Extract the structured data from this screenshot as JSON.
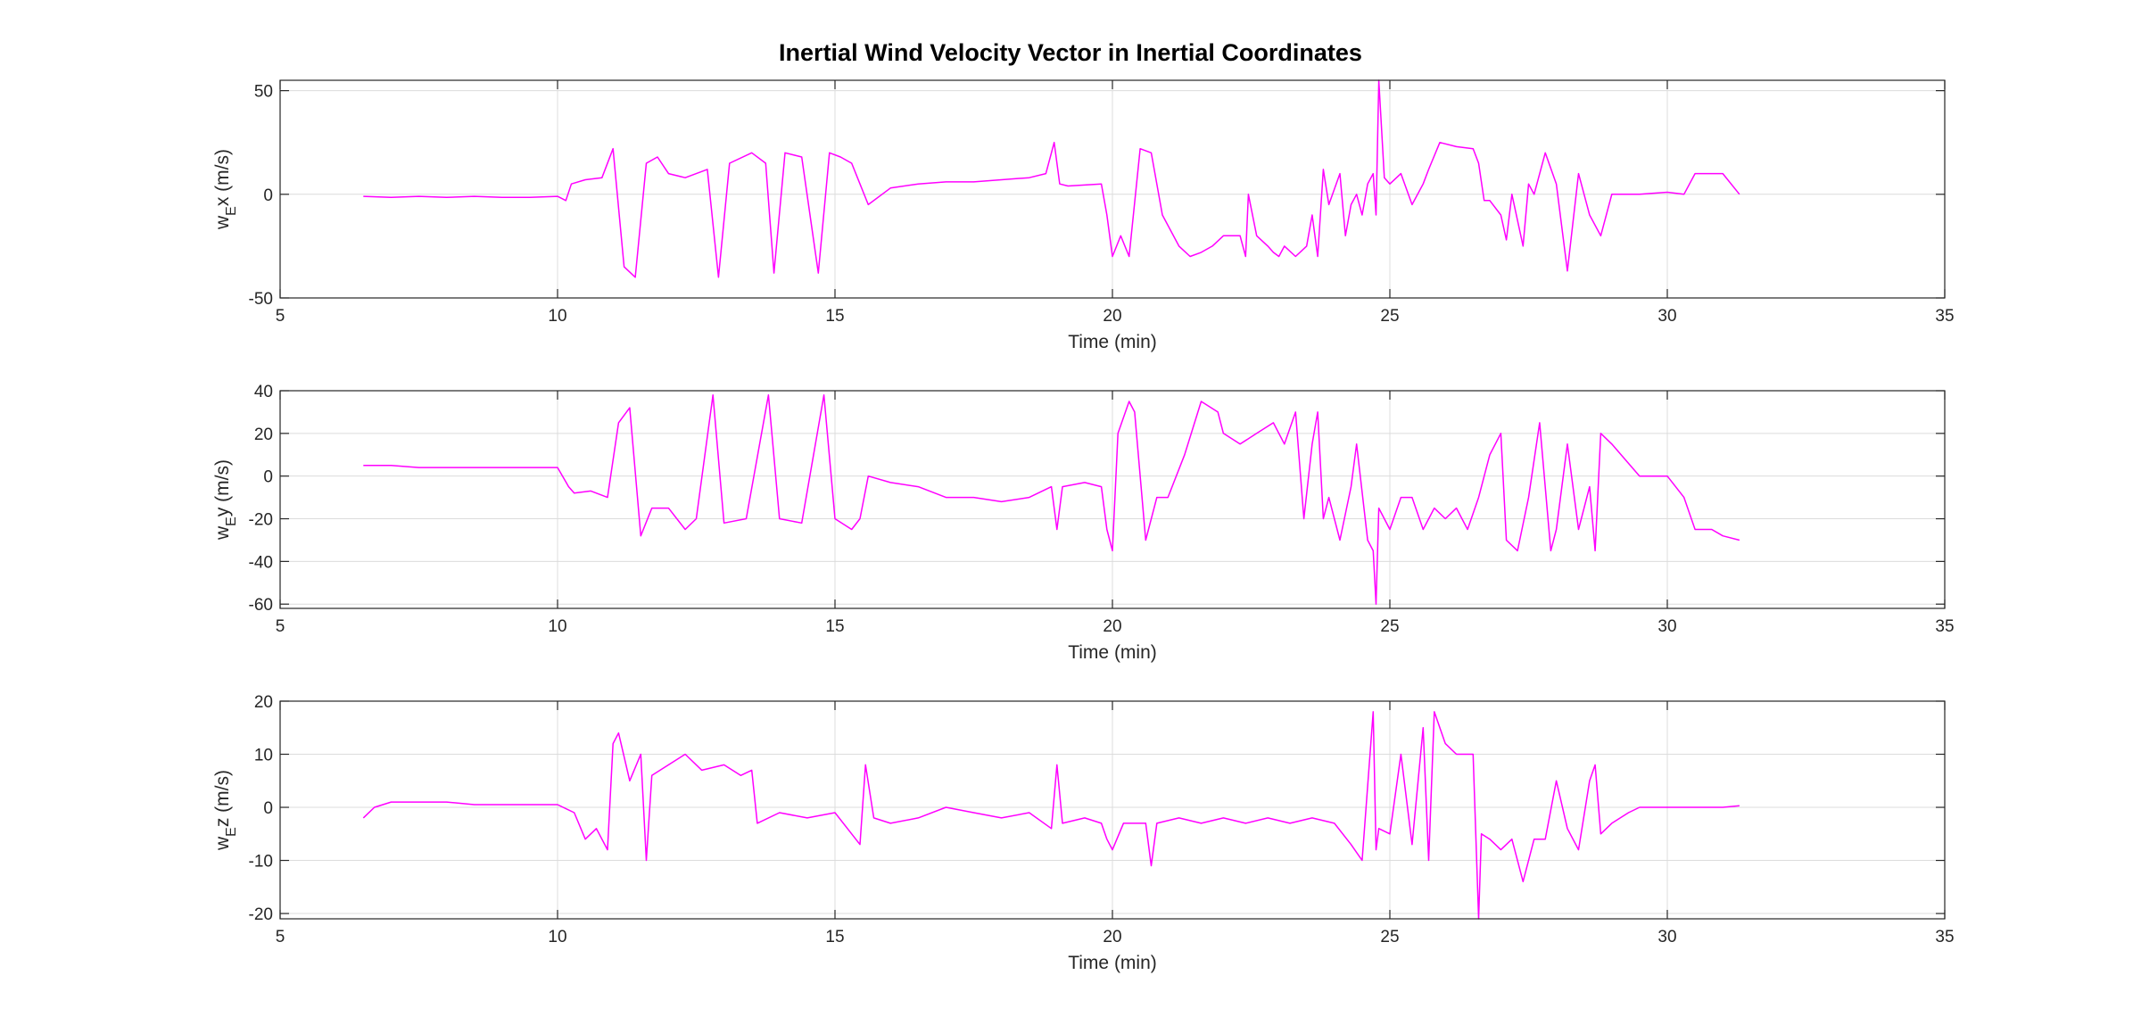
{
  "figure": {
    "title": "Inertial Wind Velocity Vector in Inertial Coordinates"
  },
  "colors": {
    "series": "#ff00ff",
    "axes": "#262626",
    "grid": "#dcdcdc",
    "background": "#ffffff"
  },
  "chart_data": [
    {
      "type": "line",
      "xlabel": "Time (min)",
      "ylabel_main": "w",
      "ylabel_sub": "E",
      "ylabel_rest": "x (m/s)",
      "xlim": [
        5,
        35
      ],
      "ylim": [
        -50,
        55
      ],
      "xticks": [
        5,
        10,
        15,
        20,
        25,
        30,
        35
      ],
      "yticks": [
        -50,
        0,
        50
      ],
      "grid": true,
      "x": [
        6.5,
        7.0,
        7.5,
        8.0,
        8.5,
        9.0,
        9.5,
        10.0,
        10.15,
        10.25,
        10.5,
        10.8,
        11.0,
        11.2,
        11.4,
        11.6,
        11.8,
        12.0,
        12.3,
        12.5,
        12.7,
        12.9,
        13.1,
        13.5,
        13.75,
        13.9,
        14.1,
        14.4,
        14.7,
        14.9,
        15.1,
        15.3,
        15.45,
        15.6,
        16.0,
        16.5,
        17.0,
        17.5,
        18.0,
        18.5,
        18.8,
        18.95,
        19.05,
        19.2,
        19.8,
        19.9,
        20.0,
        20.15,
        20.3,
        20.5,
        20.7,
        20.9,
        21.2,
        21.4,
        21.6,
        21.8,
        22.0,
        22.3,
        22.4,
        22.45,
        22.6,
        22.8,
        22.9,
        23.0,
        23.1,
        23.3,
        23.5,
        23.6,
        23.7,
        23.8,
        23.9,
        24.1,
        24.2,
        24.3,
        24.4,
        24.5,
        24.6,
        24.7,
        24.75,
        24.8,
        24.9,
        25.0,
        25.2,
        25.4,
        25.6,
        25.7,
        25.9,
        26.2,
        26.5,
        26.6,
        26.7,
        26.8,
        27.0,
        27.1,
        27.2,
        27.4,
        27.5,
        27.6,
        27.8,
        28.0,
        28.2,
        28.4,
        28.6,
        28.8,
        29.0,
        29.5,
        30.0,
        30.3,
        30.5,
        31.0,
        31.3
      ],
      "y": [
        -1,
        -1.5,
        -1,
        -1.5,
        -1,
        -1.5,
        -1.5,
        -1,
        -3,
        5,
        7,
        8,
        22,
        -35,
        -40,
        15,
        18,
        10,
        8,
        10,
        12,
        -40,
        15,
        20,
        15,
        -38,
        20,
        18,
        -38,
        20,
        18,
        15,
        5,
        -5,
        3,
        5,
        6,
        6,
        7,
        8,
        10,
        25,
        5,
        4,
        5,
        -10,
        -30,
        -20,
        -30,
        22,
        20,
        -10,
        -25,
        -30,
        -28,
        -25,
        -20,
        -20,
        -30,
        0,
        -20,
        -25,
        -28,
        -30,
        -25,
        -30,
        -25,
        -10,
        -30,
        12,
        -5,
        10,
        -20,
        -5,
        0,
        -10,
        5,
        10,
        -10,
        55,
        8,
        5,
        10,
        -5,
        5,
        12,
        25,
        23,
        22,
        15,
        -3,
        -3,
        -10,
        -22,
        0,
        -25,
        5,
        0,
        20,
        5,
        -37,
        10,
        -10,
        -20,
        0,
        0,
        1,
        0,
        10,
        10,
        0
      ]
    },
    {
      "type": "line",
      "xlabel": "Time (min)",
      "ylabel_main": "w",
      "ylabel_sub": "E",
      "ylabel_rest": "y (m/s)",
      "xlim": [
        5,
        35
      ],
      "ylim": [
        -62,
        40
      ],
      "xticks": [
        5,
        10,
        15,
        20,
        25,
        30,
        35
      ],
      "yticks": [
        -60,
        -40,
        -20,
        0,
        20,
        40
      ],
      "grid": true,
      "x": [
        6.5,
        7.0,
        7.5,
        8.0,
        8.5,
        9.0,
        9.5,
        10.0,
        10.2,
        10.3,
        10.6,
        10.9,
        11.1,
        11.3,
        11.5,
        11.7,
        12.0,
        12.3,
        12.5,
        12.8,
        13.0,
        13.4,
        13.8,
        14.0,
        14.4,
        14.8,
        15.0,
        15.3,
        15.45,
        15.6,
        16.0,
        16.5,
        17.0,
        17.5,
        18.0,
        18.5,
        18.9,
        19.0,
        19.1,
        19.5,
        19.8,
        19.9,
        20.0,
        20.1,
        20.3,
        20.4,
        20.6,
        20.8,
        21.0,
        21.3,
        21.6,
        21.9,
        22.0,
        22.3,
        22.6,
        22.9,
        23.1,
        23.3,
        23.45,
        23.6,
        23.7,
        23.8,
        23.9,
        24.1,
        24.3,
        24.4,
        24.6,
        24.7,
        24.75,
        24.8,
        25.0,
        25.2,
        25.4,
        25.6,
        25.8,
        26.0,
        26.2,
        26.4,
        26.6,
        26.8,
        27.0,
        27.1,
        27.3,
        27.5,
        27.7,
        27.9,
        28.0,
        28.2,
        28.4,
        28.6,
        28.7,
        28.8,
        29.0,
        29.5,
        30.0,
        30.3,
        30.5,
        30.8,
        31.0,
        31.3
      ],
      "y": [
        5,
        5,
        4,
        4,
        4,
        4,
        4,
        4,
        -5,
        -8,
        -7,
        -10,
        25,
        32,
        -28,
        -15,
        -15,
        -25,
        -20,
        38,
        -22,
        -20,
        38,
        -20,
        -22,
        38,
        -20,
        -25,
        -20,
        0,
        -3,
        -5,
        -10,
        -10,
        -12,
        -10,
        -5,
        -25,
        -5,
        -3,
        -5,
        -25,
        -35,
        20,
        35,
        30,
        -30,
        -10,
        -10,
        10,
        35,
        30,
        20,
        15,
        20,
        25,
        15,
        30,
        -20,
        15,
        30,
        -20,
        -10,
        -30,
        -5,
        15,
        -30,
        -35,
        -60,
        -15,
        -25,
        -10,
        -10,
        -25,
        -15,
        -20,
        -15,
        -25,
        -10,
        10,
        20,
        -30,
        -35,
        -10,
        25,
        -35,
        -25,
        15,
        -25,
        -5,
        -35,
        20,
        15,
        0,
        0,
        -10,
        -25,
        -25,
        -28,
        -30
      ]
    },
    {
      "type": "line",
      "xlabel": "Time (min)",
      "ylabel_main": "w",
      "ylabel_sub": "E",
      "ylabel_rest": "z (m/s)",
      "xlim": [
        5,
        35
      ],
      "ylim": [
        -21,
        20
      ],
      "xticks": [
        5,
        10,
        15,
        20,
        25,
        30,
        35
      ],
      "yticks": [
        -20,
        -10,
        0,
        10,
        20
      ],
      "grid": true,
      "x": [
        6.5,
        6.7,
        7.0,
        7.5,
        8.0,
        8.5,
        9.0,
        9.5,
        10.0,
        10.3,
        10.5,
        10.7,
        10.9,
        11.0,
        11.1,
        11.3,
        11.5,
        11.6,
        11.7,
        12.0,
        12.3,
        12.6,
        13.0,
        13.3,
        13.5,
        13.6,
        14.0,
        14.5,
        15.0,
        15.3,
        15.45,
        15.55,
        15.7,
        16.0,
        16.5,
        17.0,
        17.5,
        18.0,
        18.5,
        18.9,
        19.0,
        19.1,
        19.5,
        19.8,
        19.9,
        20.0,
        20.2,
        20.6,
        20.7,
        20.8,
        21.2,
        21.6,
        22.0,
        22.4,
        22.8,
        23.2,
        23.6,
        24.0,
        24.3,
        24.5,
        24.7,
        24.75,
        24.8,
        25.0,
        25.2,
        25.4,
        25.6,
        25.7,
        25.8,
        26.0,
        26.2,
        26.5,
        26.6,
        26.65,
        26.8,
        27.0,
        27.2,
        27.4,
        27.6,
        27.8,
        28.0,
        28.2,
        28.4,
        28.6,
        28.7,
        28.8,
        29.0,
        29.3,
        29.5,
        30.0,
        30.5,
        31.0,
        31.3
      ],
      "y": [
        -2,
        0,
        1,
        1,
        1,
        0.5,
        0.5,
        0.5,
        0.5,
        -1,
        -6,
        -4,
        -8,
        12,
        14,
        5,
        10,
        -10,
        6,
        8,
        10,
        7,
        8,
        6,
        7,
        -3,
        -1,
        -2,
        -1,
        -5,
        -7,
        8,
        -2,
        -3,
        -2,
        0,
        -1,
        -2,
        -1,
        -4,
        8,
        -3,
        -2,
        -3,
        -6,
        -8,
        -3,
        -3,
        -11,
        -3,
        -2,
        -3,
        -2,
        -3,
        -2,
        -3,
        -2,
        -3,
        -7,
        -10,
        18,
        -8,
        -4,
        -5,
        10,
        -7,
        15,
        -10,
        18,
        12,
        10,
        10,
        -21,
        -5,
        -6,
        -8,
        -6,
        -14,
        -6,
        -6,
        5,
        -4,
        -8,
        5,
        8,
        -5,
        -3,
        -1,
        0,
        0,
        0,
        0,
        0.3
      ]
    }
  ]
}
